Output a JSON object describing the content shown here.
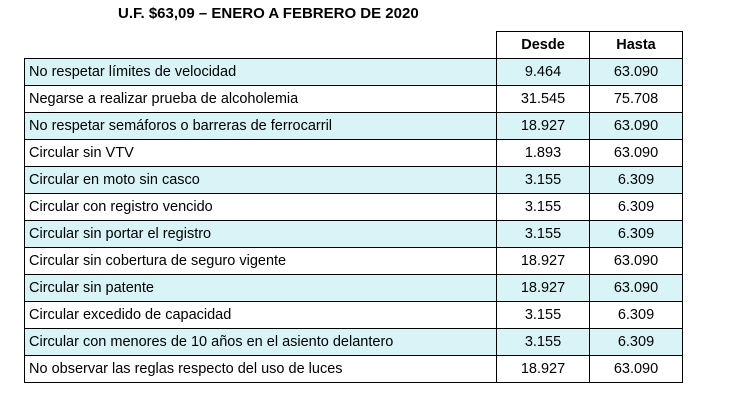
{
  "title": "U.F. $63,09 – ENERO A FEBRERO DE 2020",
  "table": {
    "headers": {
      "desde": "Desde",
      "hasta": "Hasta"
    },
    "rows": [
      {
        "label": "No respetar límites de velocidad",
        "desde": "9.464",
        "hasta": "63.090"
      },
      {
        "label": "Negarse a realizar prueba de alcoholemia",
        "desde": "31.545",
        "hasta": "75.708"
      },
      {
        "label": "No respetar semáforos o barreras de ferrocarril",
        "desde": "18.927",
        "hasta": "63.090"
      },
      {
        "label": "Circular sin VTV",
        "desde": "1.893",
        "hasta": "63.090"
      },
      {
        "label": "Circular en moto sin casco",
        "desde": "3.155",
        "hasta": "6.309"
      },
      {
        "label": "Circular con registro vencido",
        "desde": "3.155",
        "hasta": "6.309"
      },
      {
        "label": "Circular sin portar el registro",
        "desde": "3.155",
        "hasta": "6.309"
      },
      {
        "label": "Circular sin cobertura de seguro vigente",
        "desde": "18.927",
        "hasta": "63.090"
      },
      {
        "label": "Circular sin patente",
        "desde": "18.927",
        "hasta": "63.090"
      },
      {
        "label": "Circular excedido de capacidad",
        "desde": "3.155",
        "hasta": "6.309"
      },
      {
        "label": "Circular con menores de 10 años en el asiento delantero",
        "desde": "3.155",
        "hasta": "6.309"
      },
      {
        "label": "No observar las reglas respecto del uso de luces",
        "desde": "18.927",
        "hasta": "63.090"
      }
    ]
  },
  "colors": {
    "alt_row": "#d8f4f7",
    "border": "#000000"
  }
}
